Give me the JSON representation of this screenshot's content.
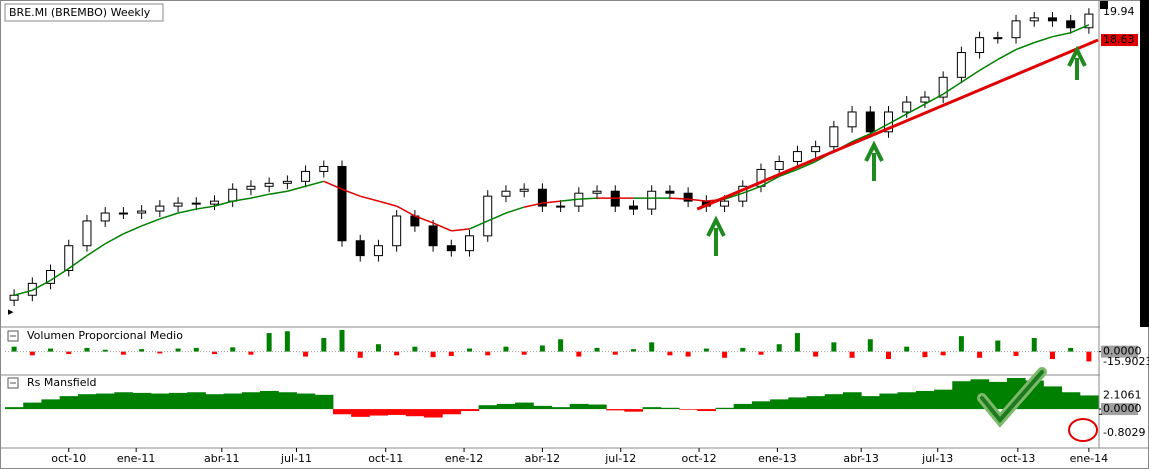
{
  "chart_data": [
    {
      "type": "candlestick",
      "title": "BRE.MI (BREMBO) Weekly",
      "xlim": [
        -0.5,
        59.5
      ],
      "ylim": [
        4.4,
        20.5
      ],
      "up_color": "#ffffff",
      "down_color": "#000000",
      "open": [
        5.5,
        5.75,
        6.35,
        7.0,
        8.25,
        9.5,
        9.9,
        9.9,
        10.0,
        10.25,
        10.4,
        10.35,
        10.5,
        11.1,
        11.25,
        11.4,
        11.5,
        12.0,
        12.25,
        8.5,
        7.75,
        8.25,
        9.75,
        9.25,
        8.25,
        8.0,
        8.75,
        10.75,
        11.0,
        11.1,
        10.25,
        10.25,
        10.9,
        11.0,
        10.25,
        10.1,
        11.0,
        10.9,
        10.5,
        10.25,
        10.5,
        11.25,
        12.1,
        12.5,
        13.0,
        13.25,
        14.25,
        15.0,
        14.0,
        15.0,
        15.5,
        15.75,
        16.75,
        18.0,
        18.75,
        18.75,
        19.6,
        19.75,
        19.6,
        19.25
      ],
      "high": [
        6.05,
        6.65,
        7.3,
        8.55,
        9.8,
        10.2,
        10.2,
        10.3,
        10.55,
        10.7,
        10.7,
        10.8,
        11.4,
        11.55,
        11.7,
        11.8,
        12.3,
        12.55,
        12.55,
        8.8,
        8.55,
        10.05,
        10.05,
        9.55,
        8.55,
        9.05,
        11.05,
        11.3,
        11.4,
        11.4,
        10.55,
        11.2,
        11.3,
        11.3,
        10.55,
        11.3,
        11.3,
        11.2,
        10.8,
        10.8,
        11.55,
        12.4,
        12.8,
        13.3,
        13.55,
        14.55,
        15.3,
        15.3,
        15.3,
        15.8,
        16.05,
        17.05,
        18.3,
        19.05,
        19.05,
        19.9,
        20.05,
        20.05,
        19.9,
        20.24
      ],
      "low": [
        5.2,
        5.45,
        6.05,
        6.7,
        7.95,
        9.2,
        9.6,
        9.6,
        9.7,
        9.95,
        10.05,
        10.05,
        10.2,
        10.8,
        10.95,
        11.1,
        11.2,
        11.7,
        8.2,
        7.45,
        7.45,
        7.95,
        8.95,
        7.95,
        7.7,
        7.7,
        8.45,
        10.45,
        10.7,
        9.95,
        9.95,
        9.95,
        10.6,
        9.95,
        9.8,
        9.8,
        10.6,
        10.2,
        9.95,
        9.95,
        10.2,
        10.95,
        11.8,
        12.2,
        12.7,
        12.95,
        13.95,
        13.7,
        13.7,
        14.7,
        15.2,
        15.45,
        16.45,
        17.7,
        18.45,
        18.45,
        19.3,
        19.3,
        18.95,
        18.95
      ],
      "close": [
        5.75,
        6.35,
        7.0,
        8.25,
        9.5,
        9.9,
        9.9,
        10.0,
        10.25,
        10.4,
        10.35,
        10.5,
        11.1,
        11.25,
        11.4,
        11.5,
        12.0,
        12.25,
        8.5,
        7.75,
        8.25,
        9.75,
        9.25,
        8.25,
        8.0,
        8.75,
        10.75,
        11.0,
        11.1,
        10.25,
        10.25,
        10.9,
        11.0,
        10.25,
        10.1,
        11.0,
        10.9,
        10.5,
        10.25,
        10.5,
        11.25,
        12.1,
        12.5,
        13.0,
        13.25,
        14.25,
        15.0,
        14.0,
        15.0,
        15.5,
        15.75,
        16.75,
        18.0,
        18.75,
        18.75,
        19.6,
        19.75,
        19.6,
        19.25,
        19.94
      ],
      "moving_average": {
        "color_up": "#008000",
        "color_down": "#e00000",
        "values": [
          5.75,
          6.0,
          6.5,
          7.1,
          7.75,
          8.35,
          8.85,
          9.25,
          9.6,
          9.9,
          10.1,
          10.25,
          10.5,
          10.65,
          10.85,
          11.0,
          11.25,
          11.5,
          11.1,
          10.75,
          10.5,
          10.25,
          9.75,
          9.4,
          9.0,
          9.1,
          9.5,
          9.9,
          10.2,
          10.4,
          10.5,
          10.6,
          10.65,
          10.65,
          10.65,
          10.65,
          10.65,
          10.6,
          10.5,
          10.6,
          10.9,
          11.25,
          11.75,
          12.1,
          12.5,
          13.0,
          13.5,
          13.9,
          14.4,
          14.9,
          15.4,
          15.9,
          16.5,
          17.1,
          17.65,
          18.15,
          18.5,
          18.8,
          19.0,
          19.4
        ]
      },
      "trendline": {
        "color": "#e00000",
        "x": [
          37.5,
          59.5
        ],
        "values": [
          10.1,
          18.63
        ]
      }
    },
    {
      "type": "bar",
      "title": "Volumen Proporcional Medio",
      "xlim": [
        -0.5,
        59.5
      ],
      "ylim": [
        -33,
        35
      ],
      "color": "#008000",
      "negative_color": "#ff0000",
      "yticks": [
        {
          "value": 0,
          "label": "0.0000"
        }
      ],
      "values": [
        8,
        -6,
        5,
        -4,
        6,
        3,
        -5,
        4,
        -3,
        5,
        6,
        -4,
        7,
        -5,
        30,
        33,
        -8,
        22,
        35,
        -10,
        12,
        -6,
        8,
        -9,
        -7,
        5,
        -6,
        8,
        -5,
        10,
        20,
        -8,
        6,
        -5,
        4,
        15,
        -6,
        -8,
        5,
        -10,
        6,
        -5,
        12,
        30,
        -8,
        15,
        -10,
        20,
        -12,
        8,
        -9,
        -6,
        25,
        -10,
        18,
        -7,
        22,
        -12,
        6,
        -15.9023
      ]
    },
    {
      "type": "area",
      "title": "Rs Mansfield",
      "xlim": [
        -0.5,
        59.5
      ],
      "ylim": [
        -5.7,
        4.8
      ],
      "color": "#008000",
      "negative_color": "#ff0000",
      "yticks": [
        {
          "value": 0,
          "label": "0.0000"
        },
        -0.8029
      ],
      "values": [
        0.3,
        1.0,
        1.5,
        2.0,
        2.3,
        2.4,
        2.6,
        2.5,
        2.4,
        2.5,
        2.6,
        2.3,
        2.4,
        2.6,
        2.8,
        2.6,
        2.4,
        2.2,
        -0.8,
        -1.2,
        -1.0,
        -0.9,
        -1.1,
        -1.3,
        -0.8,
        -0.3,
        0.6,
        0.8,
        1.0,
        0.5,
        0.3,
        0.8,
        0.7,
        -0.2,
        -0.4,
        0.3,
        0.2,
        -0.1,
        -0.3,
        0.2,
        0.8,
        1.2,
        1.5,
        1.8,
        2.0,
        2.3,
        2.6,
        2.0,
        2.4,
        2.6,
        2.8,
        3.0,
        4.3,
        4.6,
        4.2,
        4.8,
        4.4,
        3.5,
        2.6,
        2.1061
      ],
      "xticks": [
        {
          "value": 3.0,
          "label": "oct-10"
        },
        {
          "value": 6.7,
          "label": "ene-11"
        },
        {
          "value": 11.4,
          "label": "abr-11"
        },
        {
          "value": 15.5,
          "label": "jul-11"
        },
        {
          "value": 20.4,
          "label": "oct-11"
        },
        {
          "value": 24.7,
          "label": "ene-12"
        },
        {
          "value": 29.0,
          "label": "abr-12"
        },
        {
          "value": 33.3,
          "label": "jul-12"
        },
        {
          "value": 37.6,
          "label": "oct-12"
        },
        {
          "value": 41.9,
          "label": "ene-13"
        },
        {
          "value": 46.5,
          "label": "abr-13"
        },
        {
          "value": 50.7,
          "label": "jul-13"
        },
        {
          "value": 55.1,
          "label": "oct-13"
        },
        {
          "value": 59.0,
          "label": "ene-14"
        }
      ]
    }
  ]
}
